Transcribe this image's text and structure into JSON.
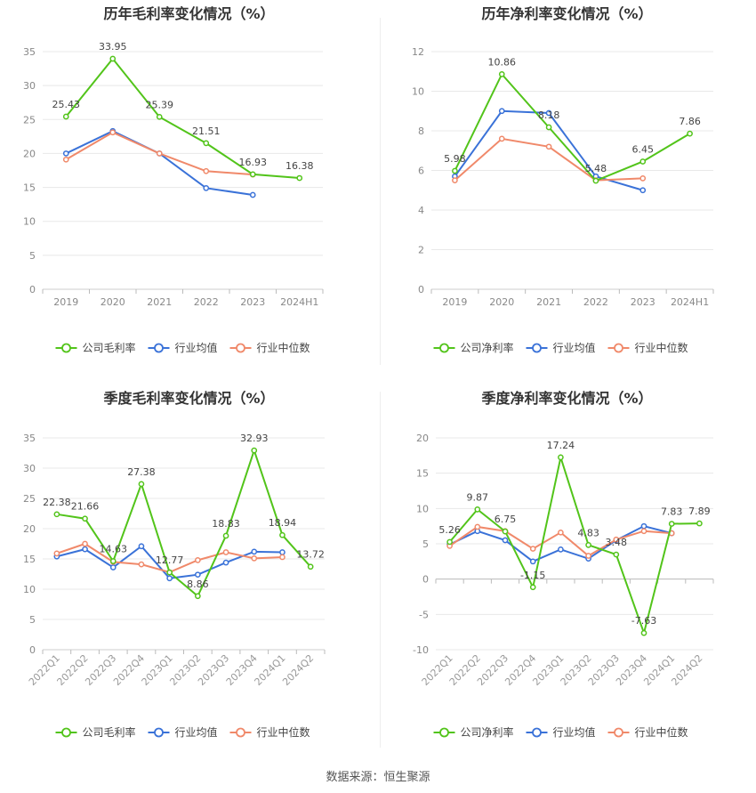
{
  "source": "数据来源：恒生聚源",
  "colors": {
    "company": "#52c41a",
    "avg": "#3a72d8",
    "median": "#f0896a"
  },
  "chart_data": [
    {
      "type": "line",
      "title": "历年毛利率变化情况（%）",
      "categories": [
        "2019",
        "2020",
        "2021",
        "2022",
        "2023",
        "2024H1"
      ],
      "ylim": [
        0,
        35
      ],
      "yticks": [
        0,
        5,
        10,
        15,
        20,
        25,
        30,
        35
      ],
      "grid": true,
      "legend": "bottom",
      "series": [
        {
          "name": "公司毛利率",
          "role": "company",
          "values": [
            25.43,
            33.95,
            25.39,
            21.51,
            16.93,
            16.38
          ],
          "labels": [
            "25.43",
            "33.95",
            "25.39",
            "21.51",
            "16.93",
            "16.38"
          ]
        },
        {
          "name": "行业均值",
          "role": "avg",
          "values": [
            20.0,
            23.3,
            20.0,
            14.9,
            13.9,
            null
          ]
        },
        {
          "name": "行业中位数",
          "role": "median",
          "values": [
            19.1,
            23.1,
            20.0,
            17.4,
            16.9,
            null
          ]
        }
      ]
    },
    {
      "type": "line",
      "title": "历年净利率变化情况（%）",
      "categories": [
        "2019",
        "2020",
        "2021",
        "2022",
        "2023",
        "2024H1"
      ],
      "ylim": [
        0,
        12
      ],
      "yticks": [
        0,
        2,
        4,
        6,
        8,
        10,
        12
      ],
      "grid": true,
      "legend": "bottom",
      "series": [
        {
          "name": "公司净利率",
          "role": "company",
          "values": [
            5.98,
            10.86,
            8.18,
            5.48,
            6.45,
            7.86
          ],
          "labels": [
            "5.98",
            "10.86",
            "8.18",
            "5.48",
            "6.45",
            "7.86"
          ]
        },
        {
          "name": "行业均值",
          "role": "avg",
          "values": [
            5.7,
            9.0,
            8.9,
            5.7,
            5.0,
            null
          ]
        },
        {
          "name": "行业中位数",
          "role": "median",
          "values": [
            5.5,
            7.6,
            7.2,
            5.5,
            5.6,
            null
          ]
        }
      ]
    },
    {
      "type": "line",
      "title": "季度毛利率变化情况（%）",
      "categories": [
        "2022Q1",
        "2022Q2",
        "2022Q3",
        "2022Q4",
        "2023Q1",
        "2023Q2",
        "2023Q3",
        "2023Q4",
        "2024Q1",
        "2024Q2"
      ],
      "ylim": [
        0,
        35
      ],
      "yticks": [
        0,
        5,
        10,
        15,
        20,
        25,
        30,
        35
      ],
      "grid": true,
      "legend": "bottom",
      "series": [
        {
          "name": "公司毛利率",
          "role": "company",
          "values": [
            22.38,
            21.66,
            14.63,
            27.38,
            12.77,
            8.86,
            18.83,
            32.93,
            18.94,
            13.72
          ],
          "labels": [
            "22.38",
            "21.66",
            "14.63",
            "27.38",
            "12.77",
            "8.86",
            "18.83",
            "32.93",
            "18.94",
            "13.72"
          ]
        },
        {
          "name": "行业均值",
          "role": "avg",
          "values": [
            15.4,
            16.6,
            13.6,
            17.1,
            11.8,
            12.4,
            14.4,
            16.2,
            16.1,
            null
          ]
        },
        {
          "name": "行业中位数",
          "role": "median",
          "values": [
            15.9,
            17.5,
            14.5,
            14.1,
            12.8,
            14.8,
            16.1,
            15.1,
            15.3,
            null
          ]
        }
      ]
    },
    {
      "type": "line",
      "title": "季度净利率变化情况（%）",
      "categories": [
        "2022Q1",
        "2022Q2",
        "2022Q3",
        "2022Q4",
        "2023Q1",
        "2023Q2",
        "2023Q3",
        "2023Q4",
        "2024Q1",
        "2024Q2"
      ],
      "ylim": [
        -10,
        20
      ],
      "yticks": [
        -10,
        -5,
        0,
        5,
        10,
        15,
        20
      ],
      "grid": true,
      "legend": "bottom",
      "series": [
        {
          "name": "公司净利率",
          "role": "company",
          "values": [
            5.26,
            9.87,
            6.75,
            -1.15,
            17.24,
            4.83,
            3.48,
            -7.63,
            7.83,
            7.89
          ],
          "labels": [
            "5.26",
            "9.87",
            "6.75",
            "-1.15",
            "17.24",
            "4.83",
            "3.48",
            "-7.63",
            "7.83",
            "7.89"
          ]
        },
        {
          "name": "行业均值",
          "role": "avg",
          "values": [
            4.9,
            6.8,
            5.5,
            2.5,
            4.2,
            2.9,
            5.5,
            7.5,
            6.5,
            null
          ]
        },
        {
          "name": "行业中位数",
          "role": "median",
          "values": [
            4.7,
            7.4,
            6.8,
            4.3,
            6.6,
            3.3,
            5.6,
            6.8,
            6.5,
            null
          ]
        }
      ]
    }
  ]
}
